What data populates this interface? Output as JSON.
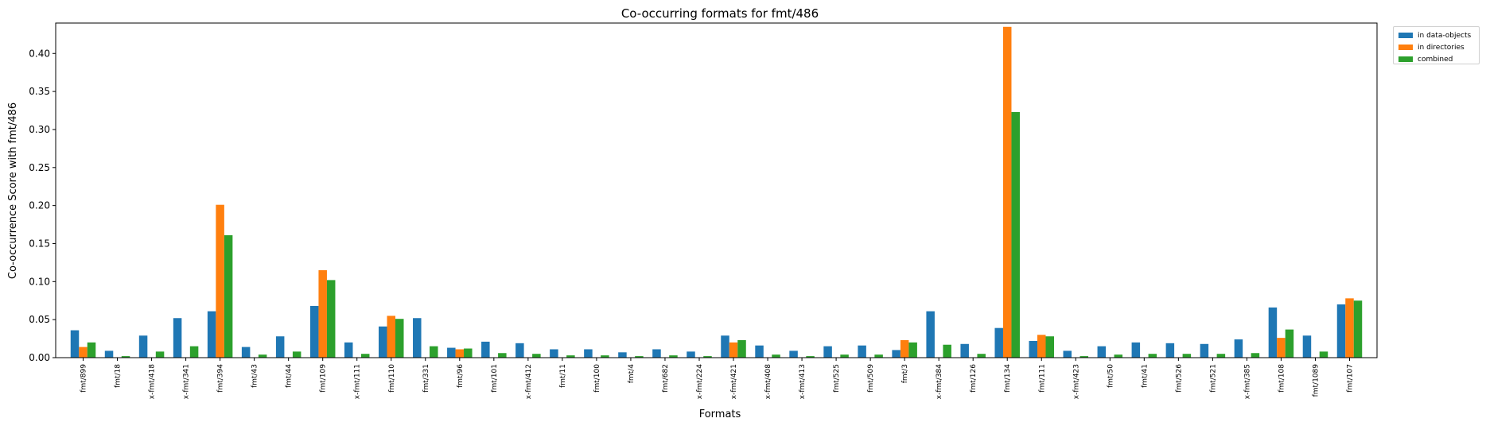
{
  "chart_data": {
    "type": "bar",
    "title": "Co-occurring formats for fmt/486",
    "xlabel": "Formats",
    "ylabel": "Co-occurrence Score with fmt/486",
    "ylim": [
      0,
      0.44
    ],
    "yticks": [
      "0.00",
      "0.05",
      "0.10",
      "0.15",
      "0.20",
      "0.25",
      "0.30",
      "0.35",
      "0.40"
    ],
    "legend_position": "upper-right-outside",
    "grid": false,
    "categories": [
      "fmt/899",
      "fmt/18",
      "x-fmt/418",
      "x-fmt/341",
      "fmt/394",
      "fmt/43",
      "fmt/44",
      "fmt/109",
      "x-fmt/111",
      "fmt/110",
      "fmt/331",
      "fmt/96",
      "fmt/101",
      "x-fmt/412",
      "fmt/11",
      "fmt/100",
      "fmt/4",
      "fmt/682",
      "x-fmt/224",
      "x-fmt/421",
      "x-fmt/408",
      "x-fmt/413",
      "fmt/525",
      "fmt/509",
      "fmt/3",
      "x-fmt/384",
      "fmt/126",
      "fmt/134",
      "fmt/111",
      "x-fmt/423",
      "fmt/50",
      "fmt/41",
      "fmt/526",
      "fmt/521",
      "x-fmt/385",
      "fmt/108",
      "fmt/1089",
      "fmt/107"
    ],
    "series": [
      {
        "name": "in data-objects",
        "color": "#1f77b4",
        "values": [
          0.036,
          0.009,
          0.029,
          0.052,
          0.061,
          0.014,
          0.028,
          0.068,
          0.02,
          0.041,
          0.052,
          0.013,
          0.021,
          0.019,
          0.011,
          0.011,
          0.007,
          0.011,
          0.008,
          0.029,
          0.016,
          0.009,
          0.015,
          0.016,
          0.01,
          0.061,
          0.018,
          0.039,
          0.022,
          0.009,
          0.015,
          0.02,
          0.019,
          0.018,
          0.024,
          0.066,
          0.029,
          0.07
        ]
      },
      {
        "name": "in directories",
        "color": "#ff7f0e",
        "values": [
          0.014,
          0,
          0,
          0,
          0.201,
          0,
          0,
          0.115,
          0,
          0.055,
          0,
          0.011,
          0,
          0,
          0,
          0,
          0,
          0,
          0,
          0.02,
          0,
          0,
          0,
          0,
          0.023,
          0,
          0,
          0.435,
          0.03,
          0,
          0,
          0,
          0,
          0,
          0,
          0.026,
          0,
          0.078
        ]
      },
      {
        "name": "combined",
        "color": "#2ca02c",
        "values": [
          0.02,
          0.002,
          0.008,
          0.015,
          0.161,
          0.004,
          0.008,
          0.102,
          0.005,
          0.051,
          0.015,
          0.012,
          0.006,
          0.005,
          0.003,
          0.003,
          0.002,
          0.003,
          0.002,
          0.023,
          0.004,
          0.002,
          0.004,
          0.004,
          0.02,
          0.017,
          0.005,
          0.323,
          0.028,
          0.002,
          0.004,
          0.005,
          0.005,
          0.005,
          0.006,
          0.037,
          0.008,
          0.075
        ]
      }
    ]
  }
}
